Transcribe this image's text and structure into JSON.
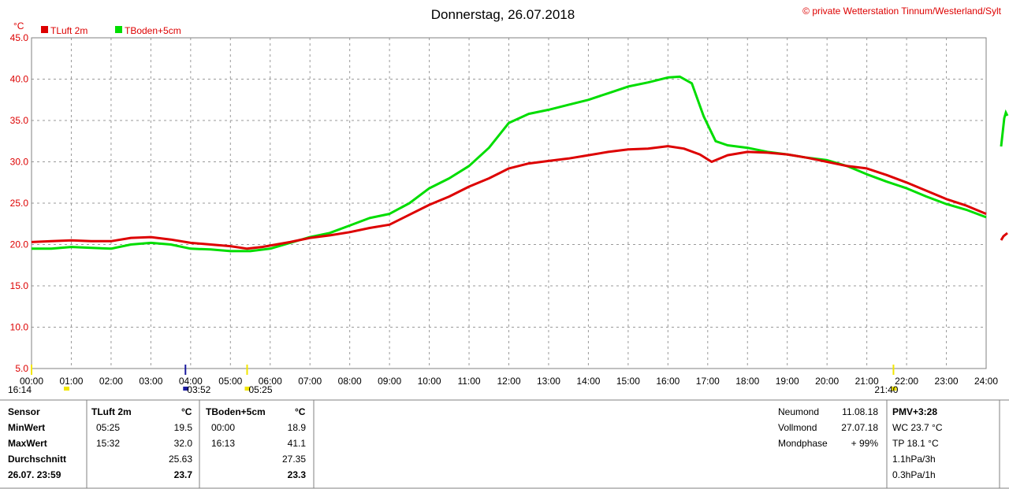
{
  "chart_data": {
    "type": "line",
    "title": "Donnerstag, 26.07.2018",
    "copyright": "© private Wetterstation Tinnum/Westerland/Sylt",
    "ylabel": "°C",
    "ylim": [
      5,
      45
    ],
    "yticks": [
      "5.0",
      "10.0",
      "15.0",
      "20.0",
      "25.0",
      "30.0",
      "35.0",
      "40.0",
      "45.0"
    ],
    "xlim": [
      0,
      24
    ],
    "xticks": [
      "00:00",
      "01:00",
      "02:00",
      "03:00",
      "04:00",
      "05:00",
      "06:00",
      "07:00",
      "08:00",
      "09:00",
      "10:00",
      "11:00",
      "12:00",
      "13:00",
      "14:00",
      "15:00",
      "16:00",
      "17:00",
      "18:00",
      "19:00",
      "20:00",
      "21:00",
      "22:00",
      "23:00",
      "24:00"
    ],
    "grid": true,
    "legend": "top-left",
    "events": [
      {
        "label": "16:14",
        "x": 0.0,
        "color": "#f2e600"
      },
      {
        "label": "03:52",
        "x": 3.87,
        "color": "#1a1aa0"
      },
      {
        "label": "05:25",
        "x": 5.42,
        "color": "#f2e600"
      },
      {
        "label": "21:40",
        "x": 21.67,
        "color": "#f2e600"
      }
    ],
    "series": [
      {
        "name": "TLuft 2m",
        "color": "#dd0000",
        "x": [
          0,
          0.5,
          1,
          1.5,
          2,
          2.5,
          3,
          3.5,
          4,
          4.5,
          5,
          5.42,
          5.8,
          6.5,
          7,
          7.5,
          8,
          8.5,
          9,
          9.5,
          10,
          10.5,
          11,
          11.5,
          12,
          12.5,
          13,
          13.5,
          14,
          14.5,
          15,
          15.5,
          16,
          16.4,
          16.8,
          17.1,
          17.5,
          18,
          18.5,
          19,
          19.5,
          20,
          20.5,
          21,
          21.5,
          22,
          22.5,
          23,
          23.5,
          24
        ],
        "y": [
          20.3,
          20.4,
          20.5,
          20.4,
          20.4,
          20.8,
          20.9,
          20.6,
          20.2,
          20.0,
          19.8,
          19.5,
          19.7,
          20.3,
          20.8,
          21.1,
          21.5,
          22.0,
          22.4,
          23.6,
          24.8,
          25.8,
          27.0,
          28.0,
          29.2,
          29.8,
          30.1,
          30.4,
          30.8,
          31.2,
          31.5,
          31.6,
          31.9,
          31.6,
          30.9,
          30.0,
          30.8,
          31.2,
          31.1,
          30.9,
          30.5,
          30.0,
          29.5,
          29.2,
          28.4,
          27.5,
          26.5,
          25.5,
          24.7,
          23.7
        ]
      },
      {
        "name": "TBoden+5cm",
        "color": "#00dd00",
        "x": [
          0,
          0.5,
          1,
          1.5,
          2,
          2.5,
          3,
          3.5,
          4,
          4.5,
          5,
          5.5,
          6,
          6.5,
          7,
          7.5,
          8,
          8.5,
          9,
          9.5,
          10,
          10.5,
          11,
          11.5,
          12,
          12.5,
          13,
          13.5,
          14,
          14.5,
          15,
          15.5,
          16,
          16.3,
          16.6,
          16.9,
          17.2,
          17.5,
          18,
          18.5,
          19,
          19.5,
          20,
          20.5,
          21,
          21.5,
          22,
          22.5,
          23,
          23.5,
          24
        ],
        "y": [
          19.5,
          19.5,
          19.7,
          19.6,
          19.5,
          20.0,
          20.2,
          20.0,
          19.5,
          19.4,
          19.2,
          19.2,
          19.5,
          20.2,
          20.9,
          21.4,
          22.3,
          23.2,
          23.7,
          25.0,
          26.8,
          28.0,
          29.5,
          31.7,
          34.7,
          35.8,
          36.3,
          36.9,
          37.5,
          38.3,
          39.1,
          39.6,
          40.2,
          40.3,
          39.5,
          35.5,
          32.5,
          32.0,
          31.7,
          31.2,
          30.9,
          30.5,
          30.2,
          29.5,
          28.5,
          27.6,
          26.8,
          25.8,
          24.9,
          24.2,
          23.3
        ]
      }
    ]
  },
  "stats": {
    "sensor_label": "Sensor",
    "min_label": "MinWert",
    "max_label": "MaxWert",
    "avg_label": "Durchschnitt",
    "current_label": "26.07. 23:59",
    "tluft": {
      "name": "TLuft 2m",
      "unit": "°C",
      "min_time": "05:25",
      "min_val": "19.5",
      "max_time": "15:32",
      "max_val": "32.0",
      "avg": "25.63",
      "current": "23.7"
    },
    "tboden": {
      "name": "TBoden+5cm",
      "unit": "°C",
      "min_time": "00:00",
      "min_val": "18.9",
      "max_time": "16:13",
      "max_val": "41.1",
      "avg": "27.35",
      "current": "23.3"
    }
  },
  "moon": {
    "new_label": "Neumond",
    "new_date": "11.08.18",
    "full_label": "Vollmond",
    "full_date": "27.07.18",
    "phase_label": "Mondphase",
    "phase_value": "+ 99%"
  },
  "extra": {
    "pmv": "PMV+3:28",
    "wc": "WC 23.7 °C",
    "tp": "TP 18.1 °C",
    "p3h": "1.1hPa/3h",
    "p1h": "0.3hPa/1h"
  }
}
